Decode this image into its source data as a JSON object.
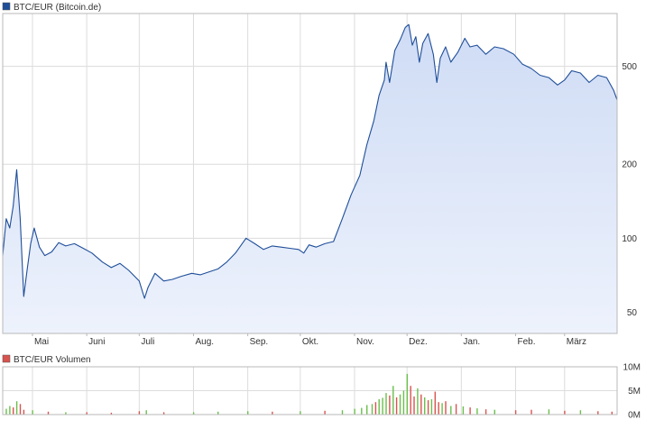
{
  "colors": {
    "price_line": "#1f4e99",
    "price_fill_top": "#cfdcf5",
    "price_fill_bottom": "#edf2fc",
    "grid": "#dcdcdc",
    "frame": "#b8b8b8",
    "volume_up": "#6abf4b",
    "volume_down": "#d9534f",
    "legend_price_swatch": "#1f4e99",
    "legend_volume_swatch": "#d9534f"
  },
  "chart_data": [
    {
      "type": "line",
      "title": "BTC/EUR (Bitcoin.de)",
      "y_scale": "log",
      "ylim": [
        41,
        820
      ],
      "y_ticks": [
        50,
        100,
        200,
        500
      ],
      "y_tick_labels": [
        "50",
        "100",
        "200",
        "500"
      ],
      "x_domain": [
        "2013-04-14",
        "2014-03-31"
      ],
      "x_ticks": [
        "2013-05-01",
        "2013-06-01",
        "2013-07-01",
        "2013-08-01",
        "2013-09-01",
        "2013-10-01",
        "2013-11-01",
        "2013-12-01",
        "2014-01-01",
        "2014-02-01",
        "2014-03-01"
      ],
      "x_tick_labels": [
        "Mai",
        "Juni",
        "Juli",
        "Aug.",
        "Sep.",
        "Okt.",
        "Nov.",
        "Dez.",
        "Jan.",
        "Feb.",
        "März"
      ],
      "grid": true,
      "legend": "top-left",
      "series": [
        {
          "name": "BTC/EUR (Bitcoin.de)",
          "x": [
            "2013-04-14",
            "2013-04-16",
            "2013-04-18",
            "2013-04-20",
            "2013-04-22",
            "2013-04-24",
            "2013-04-26",
            "2013-04-28",
            "2013-04-30",
            "2013-05-02",
            "2013-05-05",
            "2013-05-08",
            "2013-05-12",
            "2013-05-16",
            "2013-05-20",
            "2013-05-25",
            "2013-05-30",
            "2013-06-04",
            "2013-06-10",
            "2013-06-15",
            "2013-06-20",
            "2013-06-25",
            "2013-07-01",
            "2013-07-04",
            "2013-07-06",
            "2013-07-10",
            "2013-07-15",
            "2013-07-20",
            "2013-07-25",
            "2013-07-31",
            "2013-08-05",
            "2013-08-10",
            "2013-08-15",
            "2013-08-20",
            "2013-08-25",
            "2013-08-31",
            "2013-09-05",
            "2013-09-10",
            "2013-09-15",
            "2013-09-20",
            "2013-09-25",
            "2013-09-30",
            "2013-10-03",
            "2013-10-06",
            "2013-10-10",
            "2013-10-15",
            "2013-10-20",
            "2013-10-25",
            "2013-10-30",
            "2013-11-04",
            "2013-11-08",
            "2013-11-12",
            "2013-11-15",
            "2013-11-18",
            "2013-11-19",
            "2013-11-21",
            "2013-11-24",
            "2013-11-27",
            "2013-11-30",
            "2013-12-02",
            "2013-12-04",
            "2013-12-06",
            "2013-12-08",
            "2013-12-10",
            "2013-12-13",
            "2013-12-16",
            "2013-12-18",
            "2013-12-20",
            "2013-12-23",
            "2013-12-26",
            "2013-12-30",
            "2014-01-03",
            "2014-01-06",
            "2014-01-10",
            "2014-01-15",
            "2014-01-20",
            "2014-01-25",
            "2014-01-31",
            "2014-02-05",
            "2014-02-10",
            "2014-02-15",
            "2014-02-20",
            "2014-02-25",
            "2014-03-01",
            "2014-03-05",
            "2014-03-10",
            "2014-03-15",
            "2014-03-20",
            "2014-03-25",
            "2014-03-29",
            "2014-03-31"
          ],
          "values": [
            85,
            120,
            110,
            135,
            190,
            120,
            58,
            75,
            95,
            110,
            92,
            85,
            88,
            96,
            93,
            95,
            91,
            87,
            80,
            76,
            79,
            74,
            67,
            57,
            63,
            72,
            67,
            68,
            70,
            72,
            71,
            73,
            75,
            80,
            87,
            100,
            95,
            90,
            93,
            92,
            91,
            90,
            87,
            94,
            92,
            95,
            97,
            120,
            150,
            180,
            240,
            300,
            380,
            440,
            520,
            430,
            580,
            640,
            720,
            740,
            610,
            660,
            520,
            620,
            680,
            560,
            430,
            540,
            600,
            520,
            570,
            650,
            600,
            610,
            560,
            600,
            590,
            560,
            510,
            490,
            460,
            450,
            420,
            440,
            480,
            470,
            430,
            460,
            450,
            400,
            365
          ]
        }
      ]
    },
    {
      "type": "bar",
      "title": "BTC/EUR Volumen",
      "ylim": [
        0,
        10000000
      ],
      "y_ticks": [
        0,
        5000000,
        10000000
      ],
      "y_tick_labels": [
        "0M",
        "5M",
        "10M"
      ],
      "x_domain": [
        "2013-04-14",
        "2014-03-31"
      ],
      "grid": true,
      "legend": "top-left",
      "series": [
        {
          "name": "BTC/EUR Volumen",
          "x": [
            "2013-04-16",
            "2013-04-18",
            "2013-04-20",
            "2013-04-22",
            "2013-04-24",
            "2013-04-26",
            "2013-05-01",
            "2013-05-10",
            "2013-05-20",
            "2013-06-01",
            "2013-06-15",
            "2013-07-01",
            "2013-07-05",
            "2013-07-15",
            "2013-08-01",
            "2013-08-15",
            "2013-09-01",
            "2013-09-15",
            "2013-10-01",
            "2013-10-15",
            "2013-10-25",
            "2013-11-01",
            "2013-11-05",
            "2013-11-08",
            "2013-11-11",
            "2013-11-13",
            "2013-11-15",
            "2013-11-17",
            "2013-11-19",
            "2013-11-21",
            "2013-11-23",
            "2013-11-25",
            "2013-11-27",
            "2013-11-29",
            "2013-12-01",
            "2013-12-03",
            "2013-12-05",
            "2013-12-07",
            "2013-12-09",
            "2013-12-11",
            "2013-12-13",
            "2013-12-15",
            "2013-12-17",
            "2013-12-19",
            "2013-12-21",
            "2013-12-23",
            "2013-12-26",
            "2013-12-29",
            "2014-01-02",
            "2014-01-06",
            "2014-01-10",
            "2014-01-15",
            "2014-01-20",
            "2014-02-01",
            "2014-02-10",
            "2014-02-20",
            "2014-03-01",
            "2014-03-10",
            "2014-03-20",
            "2014-03-28"
          ],
          "values": [
            1200000,
            1800000,
            1500000,
            2800000,
            2200000,
            1000000,
            900000,
            600000,
            500000,
            500000,
            400000,
            700000,
            900000,
            500000,
            500000,
            600000,
            700000,
            600000,
            700000,
            800000,
            900000,
            1200000,
            1400000,
            2000000,
            2200000,
            2600000,
            3200000,
            3500000,
            4500000,
            4000000,
            6000000,
            3600000,
            4200000,
            5000000,
            8500000,
            6000000,
            3800000,
            5500000,
            4200000,
            3600000,
            3000000,
            3200000,
            4800000,
            2600000,
            2400000,
            2800000,
            1800000,
            2200000,
            1700000,
            1500000,
            1300000,
            1100000,
            1000000,
            900000,
            1000000,
            1100000,
            800000,
            900000,
            700000,
            600000
          ],
          "directions": [
            "up",
            "up",
            "down",
            "up",
            "down",
            "down",
            "up",
            "down",
            "up",
            "down",
            "down",
            "down",
            "up",
            "down",
            "up",
            "up",
            "up",
            "down",
            "up",
            "down",
            "up",
            "up",
            "up",
            "up",
            "up",
            "down",
            "up",
            "up",
            "up",
            "down",
            "up",
            "down",
            "up",
            "up",
            "up",
            "down",
            "down",
            "up",
            "down",
            "up",
            "down",
            "up",
            "down",
            "down",
            "up",
            "down",
            "up",
            "down",
            "up",
            "down",
            "up",
            "down",
            "up",
            "down",
            "down",
            "up",
            "down",
            "up",
            "down",
            "down"
          ]
        }
      ]
    }
  ]
}
